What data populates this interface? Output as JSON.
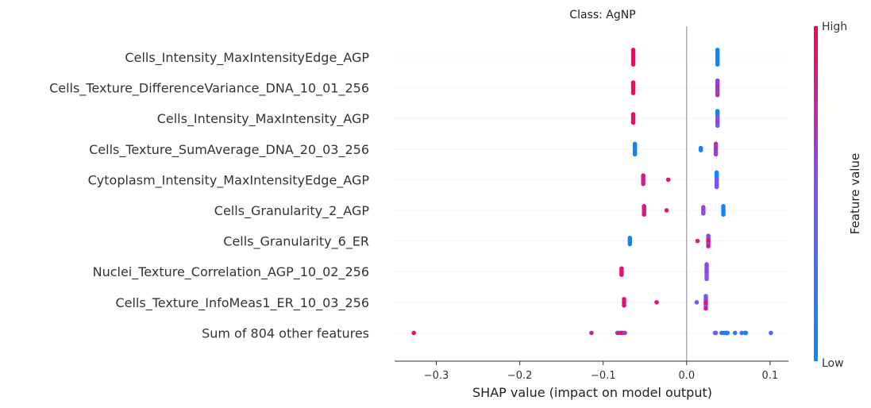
{
  "chart_data": {
    "type": "scatter",
    "title": "Class: AgNP",
    "xlabel": "SHAP value (impact on model output)",
    "xlim": [
      -0.35,
      0.122
    ],
    "xticks": [
      -0.3,
      -0.2,
      -0.1,
      0.0,
      0.1
    ],
    "xtick_labels": [
      "−0.3",
      "−0.2",
      "−0.1",
      "0.0",
      "0.1"
    ],
    "grid": "dotted horizontal per feature",
    "zero_line": true,
    "colorbar": {
      "label": "Feature value",
      "high_label": "High",
      "low_label": "Low",
      "high_color": "#ff0052",
      "low_color": "#008afb"
    },
    "features": [
      {
        "name": "Cells_Intensity_MaxIntensityEdge_AGP",
        "points": [
          {
            "x": -0.064,
            "v": 0.95
          },
          {
            "x": -0.064,
            "v": 0.95
          },
          {
            "x": -0.064,
            "v": 0.95
          },
          {
            "x": -0.064,
            "v": 0.95
          },
          {
            "x": -0.064,
            "v": 0.95
          },
          {
            "x": -0.064,
            "v": 0.95
          },
          {
            "x": -0.064,
            "v": 0.95
          },
          {
            "x": -0.064,
            "v": 0.95
          },
          {
            "x": 0.037,
            "v": 0.05
          },
          {
            "x": 0.037,
            "v": 0.05
          },
          {
            "x": 0.037,
            "v": 0.05
          },
          {
            "x": 0.037,
            "v": 0.1
          },
          {
            "x": 0.037,
            "v": 0.05
          },
          {
            "x": 0.037,
            "v": 0.1
          },
          {
            "x": 0.037,
            "v": 0.05
          },
          {
            "x": 0.037,
            "v": 0.05
          }
        ]
      },
      {
        "name": "Cells_Texture_DifferenceVariance_DNA_10_01_256",
        "points": [
          {
            "x": -0.064,
            "v": 0.95
          },
          {
            "x": -0.064,
            "v": 0.95
          },
          {
            "x": -0.064,
            "v": 0.95
          },
          {
            "x": -0.064,
            "v": 0.95
          },
          {
            "x": -0.064,
            "v": 0.95
          },
          {
            "x": -0.064,
            "v": 0.95
          },
          {
            "x": 0.037,
            "v": 0.55
          },
          {
            "x": 0.037,
            "v": 0.75
          },
          {
            "x": 0.037,
            "v": 0.6
          },
          {
            "x": 0.037,
            "v": 0.8
          },
          {
            "x": 0.037,
            "v": 0.65
          },
          {
            "x": 0.037,
            "v": 0.7
          },
          {
            "x": 0.037,
            "v": 0.6
          },
          {
            "x": 0.037,
            "v": 0.75
          }
        ]
      },
      {
        "name": "Cells_Intensity_MaxIntensity_AGP",
        "points": [
          {
            "x": -0.064,
            "v": 0.95
          },
          {
            "x": -0.064,
            "v": 0.95
          },
          {
            "x": -0.064,
            "v": 0.95
          },
          {
            "x": -0.064,
            "v": 0.95
          },
          {
            "x": -0.064,
            "v": 0.95
          },
          {
            "x": 0.037,
            "v": 0.05
          },
          {
            "x": 0.037,
            "v": 0.05
          },
          {
            "x": 0.037,
            "v": 0.1
          },
          {
            "x": 0.037,
            "v": 0.5
          },
          {
            "x": 0.037,
            "v": 0.55
          },
          {
            "x": 0.037,
            "v": 0.6
          },
          {
            "x": 0.037,
            "v": 0.65
          },
          {
            "x": 0.037,
            "v": 0.45
          }
        ]
      },
      {
        "name": "Cells_Texture_SumAverage_DNA_20_03_256",
        "points": [
          {
            "x": -0.062,
            "v": 0.05
          },
          {
            "x": -0.062,
            "v": 0.05
          },
          {
            "x": -0.062,
            "v": 0.05
          },
          {
            "x": -0.062,
            "v": 0.05
          },
          {
            "x": -0.062,
            "v": 0.05
          },
          {
            "x": -0.062,
            "v": 0.05
          },
          {
            "x": 0.017,
            "v": 0.15
          },
          {
            "x": 0.017,
            "v": 0.1
          },
          {
            "x": 0.035,
            "v": 0.85
          },
          {
            "x": 0.035,
            "v": 0.6
          },
          {
            "x": 0.035,
            "v": 0.75
          },
          {
            "x": 0.035,
            "v": 0.7
          },
          {
            "x": 0.035,
            "v": 0.55
          },
          {
            "x": 0.035,
            "v": 0.65
          }
        ]
      },
      {
        "name": "Cytoplasm_Intensity_MaxIntensityEdge_AGP",
        "points": [
          {
            "x": -0.052,
            "v": 0.85
          },
          {
            "x": -0.052,
            "v": 0.8
          },
          {
            "x": -0.052,
            "v": 0.85
          },
          {
            "x": -0.052,
            "v": 0.8
          },
          {
            "x": -0.052,
            "v": 0.85
          },
          {
            "x": -0.022,
            "v": 0.9
          },
          {
            "x": 0.036,
            "v": 0.05
          },
          {
            "x": 0.036,
            "v": 0.1
          },
          {
            "x": 0.036,
            "v": 0.05
          },
          {
            "x": 0.036,
            "v": 0.45
          },
          {
            "x": 0.036,
            "v": 0.5
          },
          {
            "x": 0.036,
            "v": 0.55
          },
          {
            "x": 0.036,
            "v": 0.5
          },
          {
            "x": 0.036,
            "v": 0.45
          }
        ]
      },
      {
        "name": "Cells_Granularity_2_AGP",
        "points": [
          {
            "x": -0.051,
            "v": 0.9
          },
          {
            "x": -0.051,
            "v": 0.85
          },
          {
            "x": -0.051,
            "v": 0.9
          },
          {
            "x": -0.051,
            "v": 0.85
          },
          {
            "x": -0.051,
            "v": 0.9
          },
          {
            "x": -0.024,
            "v": 0.9
          },
          {
            "x": 0.02,
            "v": 0.6
          },
          {
            "x": 0.02,
            "v": 0.55
          },
          {
            "x": 0.02,
            "v": 0.6
          },
          {
            "x": 0.02,
            "v": 0.55
          },
          {
            "x": 0.044,
            "v": 0.05
          },
          {
            "x": 0.044,
            "v": 0.1
          },
          {
            "x": 0.044,
            "v": 0.05
          },
          {
            "x": 0.044,
            "v": 0.1
          },
          {
            "x": 0.044,
            "v": 0.05
          }
        ]
      },
      {
        "name": "Cells_Granularity_6_ER",
        "points": [
          {
            "x": -0.068,
            "v": 0.05
          },
          {
            "x": -0.068,
            "v": 0.05
          },
          {
            "x": -0.068,
            "v": 0.05
          },
          {
            "x": -0.068,
            "v": 0.05
          },
          {
            "x": 0.013,
            "v": 0.85
          },
          {
            "x": 0.026,
            "v": 0.6
          },
          {
            "x": 0.026,
            "v": 0.55
          },
          {
            "x": 0.026,
            "v": 0.85
          },
          {
            "x": 0.026,
            "v": 0.9
          },
          {
            "x": 0.026,
            "v": 0.55
          },
          {
            "x": 0.026,
            "v": 0.85
          }
        ]
      },
      {
        "name": "Nuclei_Texture_Correlation_AGP_10_02_256",
        "points": [
          {
            "x": -0.078,
            "v": 0.9
          },
          {
            "x": -0.078,
            "v": 0.9
          },
          {
            "x": -0.078,
            "v": 0.9
          },
          {
            "x": -0.078,
            "v": 0.9
          },
          {
            "x": 0.024,
            "v": 0.55
          },
          {
            "x": 0.024,
            "v": 0.6
          },
          {
            "x": 0.024,
            "v": 0.5
          },
          {
            "x": 0.024,
            "v": 0.55
          },
          {
            "x": 0.024,
            "v": 0.6
          },
          {
            "x": 0.024,
            "v": 0.5
          },
          {
            "x": 0.024,
            "v": 0.55
          },
          {
            "x": 0.024,
            "v": 0.45
          }
        ]
      },
      {
        "name": "Cells_Texture_InfoMeas1_ER_10_03_256",
        "points": [
          {
            "x": -0.075,
            "v": 0.9
          },
          {
            "x": -0.075,
            "v": 0.9
          },
          {
            "x": -0.075,
            "v": 0.9
          },
          {
            "x": -0.075,
            "v": 0.9
          },
          {
            "x": -0.036,
            "v": 0.9
          },
          {
            "x": 0.012,
            "v": 0.5
          },
          {
            "x": 0.023,
            "v": 0.5
          },
          {
            "x": 0.023,
            "v": 0.45
          },
          {
            "x": 0.023,
            "v": 0.55
          },
          {
            "x": 0.023,
            "v": 0.85
          },
          {
            "x": 0.023,
            "v": 0.9
          },
          {
            "x": 0.023,
            "v": 0.5
          },
          {
            "x": 0.023,
            "v": 0.85
          }
        ]
      },
      {
        "name": "Sum of 804 other features",
        "points": [
          {
            "x": -0.327,
            "v": 0.95
          },
          {
            "x": -0.114,
            "v": 0.75
          },
          {
            "x": -0.083,
            "v": 0.6
          },
          {
            "x": -0.081,
            "v": 0.85
          },
          {
            "x": -0.079,
            "v": 0.7
          },
          {
            "x": -0.077,
            "v": 0.9
          },
          {
            "x": -0.074,
            "v": 0.65
          },
          {
            "x": 0.034,
            "v": 0.45
          },
          {
            "x": 0.035,
            "v": 0.5
          },
          {
            "x": 0.042,
            "v": 0.2
          },
          {
            "x": 0.045,
            "v": 0.05
          },
          {
            "x": 0.047,
            "v": 0.1
          },
          {
            "x": 0.048,
            "v": 0.05
          },
          {
            "x": 0.049,
            "v": 0.15
          },
          {
            "x": 0.058,
            "v": 0.2
          },
          {
            "x": 0.066,
            "v": 0.3
          },
          {
            "x": 0.07,
            "v": 0.1
          },
          {
            "x": 0.071,
            "v": 0.05
          },
          {
            "x": 0.101,
            "v": 0.35
          }
        ]
      }
    ]
  }
}
